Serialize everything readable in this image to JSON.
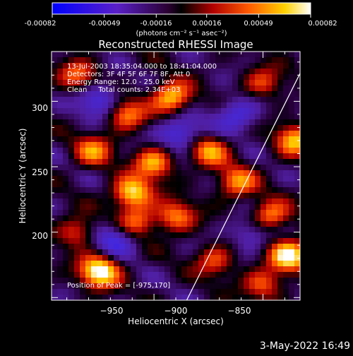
{
  "colorbar": {
    "tick_labels": [
      "-0.00082",
      "-0.00049",
      "-0.00016",
      "0.00016",
      "0.00049",
      "0.00082"
    ],
    "unit_label": "(photons cm⁻² s⁻¹ asec⁻²)",
    "range": [
      -0.00082,
      0.00082
    ]
  },
  "chart_data": {
    "type": "heatmap",
    "title": "Reconstructed RHESSI Image",
    "xlabel": "Heliocentric X (arcsec)",
    "ylabel": "Heliocentric Y (arcsec)",
    "xlim": [
      -997,
      -883
    ],
    "ylim": [
      148,
      338
    ],
    "xticks": [
      -950,
      -900,
      -850
    ],
    "yticks": [
      200,
      250,
      300
    ],
    "xtick_labels": [
      "−950",
      "−900",
      "−850"
    ],
    "ytick_labels": [
      "200",
      "250",
      "300"
    ],
    "annotations": [
      "13-Jul-2003 18:35:04.000 to 18:41:04.000",
      "Detectors: 3F 4F 5F 6F 7F 8F, Att 0",
      "Energy Range: 12.0 - 25.0 keV",
      "Clean     Total counts: 2.34E+03"
    ],
    "peak_label": "Position of Peak = [-975,170]",
    "peak": [
      -975,
      170
    ],
    "limb_line": [
      [
        -935,
        148
      ],
      [
        -878,
        338
      ]
    ],
    "hot_spots": [
      {
        "x": -975,
        "y": 170,
        "v": 0.00082
      },
      {
        "x": -942,
        "y": 303,
        "v": 0.00062
      },
      {
        "x": -963,
        "y": 290,
        "v": 0.00045
      },
      {
        "x": -978,
        "y": 262,
        "v": 0.0004
      },
      {
        "x": -950,
        "y": 253,
        "v": 0.00052
      },
      {
        "x": -960,
        "y": 230,
        "v": 0.00066
      },
      {
        "x": -958,
        "y": 208,
        "v": 0.00036
      },
      {
        "x": -940,
        "y": 212,
        "v": 0.00042
      },
      {
        "x": -922,
        "y": 178,
        "v": 0.0003
      },
      {
        "x": -925,
        "y": 262,
        "v": 0.00046
      },
      {
        "x": -912,
        "y": 238,
        "v": 0.00044
      },
      {
        "x": -900,
        "y": 314,
        "v": 0.00028
      },
      {
        "x": -885,
        "y": 270,
        "v": 0.00058
      },
      {
        "x": -897,
        "y": 212,
        "v": 0.0005
      },
      {
        "x": -888,
        "y": 182,
        "v": 0.00072
      },
      {
        "x": -858,
        "y": 296,
        "v": 0.00048
      },
      {
        "x": -858,
        "y": 250,
        "v": 0.0004
      },
      {
        "x": -870,
        "y": 198,
        "v": 0.00042
      },
      {
        "x": -848,
        "y": 182,
        "v": 0.00064
      },
      {
        "x": -830,
        "y": 230,
        "v": 0.00055
      },
      {
        "x": -822,
        "y": 155,
        "v": 0.00035
      },
      {
        "x": -985,
        "y": 320,
        "v": 0.0003
      },
      {
        "x": -985,
        "y": 200,
        "v": 0.0003
      },
      {
        "x": -900,
        "y": 160,
        "v": 0.00035
      },
      {
        "x": -838,
        "y": 318,
        "v": 0.0003
      }
    ],
    "cold_spots": [
      {
        "x": -975,
        "y": 300,
        "v": -0.0004
      },
      {
        "x": -938,
        "y": 275,
        "v": -0.00045
      },
      {
        "x": -968,
        "y": 195,
        "v": -0.0004
      },
      {
        "x": -912,
        "y": 290,
        "v": -0.00035
      },
      {
        "x": -905,
        "y": 200,
        "v": -0.0003
      },
      {
        "x": -870,
        "y": 270,
        "v": -0.00035
      },
      {
        "x": -845,
        "y": 215,
        "v": -0.00035
      },
      {
        "x": -868,
        "y": 160,
        "v": -0.0003
      },
      {
        "x": -833,
        "y": 275,
        "v": -0.0003
      }
    ],
    "grid": false
  },
  "footer": {
    "date_stamp": "3-May-2022 16:49"
  }
}
